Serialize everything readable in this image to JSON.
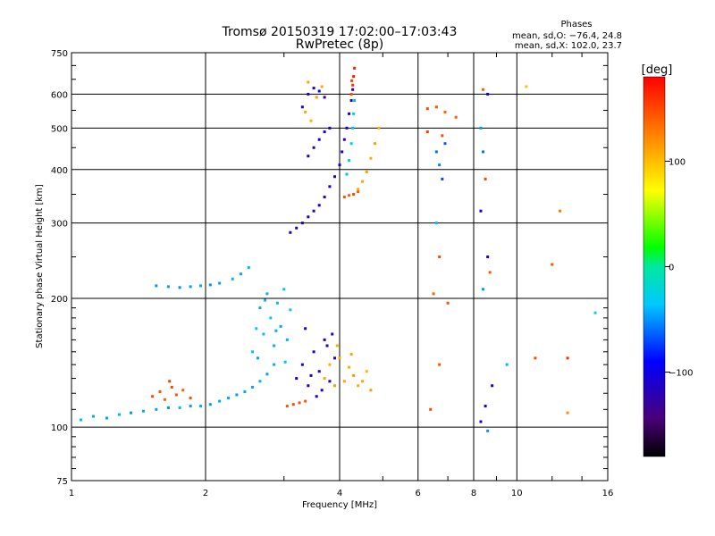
{
  "header": {
    "title_line1": "Tromsø 20150319 17:02:00–17:03:43",
    "title_line2": "RwPretec (8p)",
    "phases_title": "Phases",
    "phases_line1": "mean, sd,O: −76.4, 24.8",
    "phases_line2": "mean, sd,X: 102.0, 23.7"
  },
  "chart_data": {
    "type": "scatter",
    "xlabel": "Frequency [MHz]",
    "ylabel": "Stationary phase Virtual Height [km]",
    "xscale": "log",
    "yscale": "log",
    "xlim": [
      1,
      16
    ],
    "ylim": [
      75,
      750
    ],
    "x_ticks": [
      1,
      2,
      4,
      6,
      8,
      10,
      16
    ],
    "x_tick_labels": [
      "1",
      "2",
      "4",
      "6",
      "8",
      "10",
      "16"
    ],
    "y_ticks": [
      75,
      100,
      200,
      300,
      400,
      500,
      600,
      750
    ],
    "y_tick_labels": [
      "75",
      "100",
      "200",
      "300",
      "400",
      "500",
      "600",
      "750"
    ],
    "grid": true,
    "colorbar": {
      "label": "[deg]",
      "range": [
        -180,
        180
      ],
      "ticks": [
        -100,
        0,
        100
      ],
      "tick_labels": [
        "−100",
        "0",
        "100"
      ]
    },
    "points": [
      [
        1.05,
        104,
        -40
      ],
      [
        1.12,
        106,
        -45
      ],
      [
        1.2,
        105,
        -48
      ],
      [
        1.28,
        107,
        -42
      ],
      [
        1.36,
        108,
        -50
      ],
      [
        1.45,
        109,
        -44
      ],
      [
        1.55,
        110,
        -46
      ],
      [
        1.65,
        111,
        -52
      ],
      [
        1.75,
        111,
        -40
      ],
      [
        1.85,
        112,
        -47
      ],
      [
        1.95,
        112,
        -43
      ],
      [
        2.05,
        113,
        -49
      ],
      [
        2.15,
        115,
        -45
      ],
      [
        2.25,
        117,
        -42
      ],
      [
        2.35,
        119,
        -48
      ],
      [
        2.45,
        121,
        -44
      ],
      [
        2.55,
        124,
        -46
      ],
      [
        2.65,
        128,
        -41
      ],
      [
        2.75,
        133,
        -47
      ],
      [
        2.85,
        140,
        -43
      ],
      [
        1.52,
        118,
        150
      ],
      [
        1.58,
        121,
        145
      ],
      [
        1.62,
        116,
        140
      ],
      [
        1.68,
        124,
        152
      ],
      [
        1.72,
        119,
        148
      ],
      [
        1.78,
        122,
        142
      ],
      [
        1.85,
        117,
        146
      ],
      [
        1.66,
        128,
        155
      ],
      [
        3.05,
        112,
        145
      ],
      [
        3.15,
        113,
        150
      ],
      [
        3.25,
        114,
        148
      ],
      [
        3.35,
        115,
        142
      ],
      [
        1.55,
        214,
        -50
      ],
      [
        1.65,
        213,
        -48
      ],
      [
        1.75,
        212,
        -52
      ],
      [
        1.85,
        213,
        -46
      ],
      [
        1.95,
        214,
        -44
      ],
      [
        2.05,
        215,
        -50
      ],
      [
        2.15,
        217,
        -47
      ],
      [
        2.3,
        222,
        -42
      ],
      [
        2.4,
        228,
        -45
      ],
      [
        2.5,
        236,
        -40
      ],
      [
        2.55,
        150,
        -40
      ],
      [
        2.6,
        170,
        -35
      ],
      [
        2.65,
        190,
        -45
      ],
      [
        2.7,
        165,
        -38
      ],
      [
        2.75,
        205,
        -42
      ],
      [
        2.8,
        180,
        -36
      ],
      [
        2.85,
        155,
        -44
      ],
      [
        2.9,
        195,
        -40
      ],
      [
        2.95,
        172,
        -46
      ],
      [
        3.0,
        210,
        -38
      ],
      [
        3.05,
        160,
        -42
      ],
      [
        3.1,
        188,
        -36
      ],
      [
        2.62,
        145,
        -48
      ],
      [
        2.72,
        198,
        -40
      ],
      [
        2.88,
        168,
        -44
      ],
      [
        3.02,
        142,
        -38
      ],
      [
        3.2,
        130,
        -110
      ],
      [
        3.3,
        140,
        -115
      ],
      [
        3.4,
        125,
        -120
      ],
      [
        3.5,
        150,
        -108
      ],
      [
        3.6,
        135,
        -118
      ],
      [
        3.7,
        160,
        -112
      ],
      [
        3.8,
        128,
        -116
      ],
      [
        3.9,
        145,
        -110
      ],
      [
        3.35,
        170,
        -106
      ],
      [
        3.55,
        118,
        -120
      ],
      [
        3.75,
        155,
        -114
      ],
      [
        3.45,
        132,
        -112
      ],
      [
        3.65,
        122,
        -108
      ],
      [
        3.85,
        165,
        -115
      ],
      [
        3.7,
        130,
        110
      ],
      [
        3.8,
        140,
        105
      ],
      [
        3.9,
        125,
        115
      ],
      [
        4.0,
        145,
        108
      ],
      [
        4.1,
        128,
        112
      ],
      [
        4.2,
        138,
        106
      ],
      [
        4.3,
        132,
        118
      ],
      [
        4.4,
        125,
        104
      ],
      [
        4.5,
        128,
        110
      ],
      [
        4.6,
        135,
        102
      ],
      [
        4.7,
        122,
        114
      ],
      [
        3.95,
        155,
        108
      ],
      [
        4.25,
        148,
        112
      ],
      [
        3.1,
        285,
        -110
      ],
      [
        3.2,
        292,
        -115
      ],
      [
        3.3,
        300,
        -108
      ],
      [
        3.4,
        310,
        -112
      ],
      [
        3.5,
        320,
        -118
      ],
      [
        3.6,
        330,
        -106
      ],
      [
        3.7,
        345,
        -114
      ],
      [
        3.8,
        365,
        -110
      ],
      [
        3.9,
        385,
        -116
      ],
      [
        4.0,
        410,
        -108
      ],
      [
        4.05,
        440,
        -112
      ],
      [
        4.1,
        470,
        -118
      ],
      [
        4.15,
        500,
        -110
      ],
      [
        4.2,
        540,
        -106
      ],
      [
        4.25,
        580,
        -114
      ],
      [
        4.28,
        615,
        -110
      ],
      [
        3.3,
        560,
        -105
      ],
      [
        3.4,
        600,
        -110
      ],
      [
        3.5,
        620,
        -115
      ],
      [
        3.6,
        610,
        -108
      ],
      [
        3.7,
        590,
        -112
      ],
      [
        3.4,
        430,
        -110
      ],
      [
        3.5,
        450,
        -116
      ],
      [
        3.6,
        470,
        -104
      ],
      [
        3.7,
        490,
        -112
      ],
      [
        3.8,
        500,
        -108
      ],
      [
        4.15,
        390,
        -40
      ],
      [
        4.2,
        420,
        -35
      ],
      [
        4.25,
        460,
        -30
      ],
      [
        4.28,
        500,
        -38
      ],
      [
        4.3,
        540,
        -32
      ],
      [
        4.32,
        580,
        -40
      ],
      [
        4.25,
        600,
        150
      ],
      [
        4.28,
        630,
        160
      ],
      [
        4.3,
        660,
        170
      ],
      [
        4.32,
        690,
        165
      ],
      [
        4.26,
        645,
        155
      ],
      [
        3.35,
        545,
        110
      ],
      [
        3.45,
        520,
        105
      ],
      [
        3.55,
        590,
        115
      ],
      [
        3.65,
        625,
        108
      ],
      [
        3.4,
        640,
        112
      ],
      [
        4.1,
        345,
        145
      ],
      [
        4.2,
        348,
        140
      ],
      [
        4.3,
        350,
        150
      ],
      [
        4.4,
        355,
        142
      ],
      [
        4.4,
        360,
        105
      ],
      [
        4.5,
        375,
        110
      ],
      [
        4.6,
        395,
        115
      ],
      [
        4.7,
        425,
        108
      ],
      [
        4.8,
        460,
        112
      ],
      [
        4.9,
        500,
        106
      ],
      [
        6.3,
        555,
        150
      ],
      [
        6.6,
        560,
        145
      ],
      [
        6.9,
        545,
        140
      ],
      [
        6.3,
        490,
        155
      ],
      [
        6.8,
        480,
        150
      ],
      [
        7.3,
        530,
        142
      ],
      [
        6.6,
        440,
        -60
      ],
      [
        6.7,
        410,
        -55
      ],
      [
        6.8,
        380,
        -70
      ],
      [
        6.9,
        460,
        -65
      ],
      [
        6.6,
        300,
        -40
      ],
      [
        6.7,
        250,
        150
      ],
      [
        7.0,
        195,
        148
      ],
      [
        6.5,
        205,
        140
      ],
      [
        6.7,
        140,
        145
      ],
      [
        6.4,
        110,
        150
      ],
      [
        8.3,
        500,
        -50
      ],
      [
        8.4,
        440,
        -60
      ],
      [
        8.5,
        380,
        150
      ],
      [
        8.3,
        320,
        -110
      ],
      [
        8.6,
        250,
        -110
      ],
      [
        8.7,
        230,
        145
      ],
      [
        8.4,
        210,
        -50
      ],
      [
        8.8,
        125,
        -110
      ],
      [
        8.5,
        112,
        -100
      ],
      [
        8.3,
        103,
        -110
      ],
      [
        8.6,
        98,
        -50
      ],
      [
        8.4,
        615,
        140
      ],
      [
        8.6,
        600,
        -110
      ],
      [
        10.5,
        625,
        100
      ],
      [
        11,
        145,
        150
      ],
      [
        12,
        240,
        145
      ],
      [
        12.5,
        320,
        130
      ],
      [
        13,
        145,
        160
      ],
      [
        15,
        185,
        -20
      ],
      [
        13,
        108,
        120
      ],
      [
        9.5,
        140,
        -40
      ]
    ]
  }
}
